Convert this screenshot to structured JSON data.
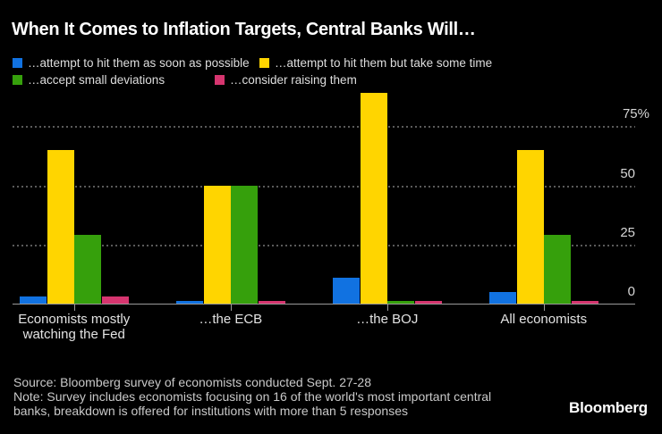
{
  "title": "When It Comes to Inflation Targets, Central Banks Will…",
  "colors": {
    "background": "#000000",
    "blue": "#1172e1",
    "yellow": "#ffd500",
    "green": "#36a00c",
    "pink": "#d6356f",
    "grid": "#5a5a5a",
    "baseline": "#9a9a9a",
    "text": "#dedede"
  },
  "legend": [
    {
      "label": "…attempt to hit them as soon as possible",
      "color": "#1172e1"
    },
    {
      "label": "…attempt to hit them but take some time",
      "color": "#ffd500"
    },
    {
      "label": "…accept small deviations",
      "color": "#36a00c"
    },
    {
      "label": "…consider raising them",
      "color": "#d6356f"
    }
  ],
  "chart_data": {
    "type": "bar",
    "categories": [
      "Economists mostly watching the Fed",
      "…the ECB",
      "…the BOJ",
      "All economists"
    ],
    "series": [
      {
        "name": "…attempt to hit them as soon as possible",
        "color": "#1172e1",
        "values": [
          3,
          1,
          11,
          5
        ]
      },
      {
        "name": "…attempt to hit them but take some time",
        "color": "#ffd500",
        "values": [
          65,
          50,
          89,
          65
        ]
      },
      {
        "name": "…accept small deviations",
        "color": "#36a00c",
        "values": [
          29,
          50,
          1,
          29
        ]
      },
      {
        "name": "…consider raising them",
        "color": "#d6356f",
        "values": [
          3,
          1,
          1,
          1
        ]
      }
    ],
    "unit": "%",
    "ylim": [
      0,
      100
    ],
    "y_ticks": [
      {
        "value": 75,
        "label": "75%"
      },
      {
        "value": 50,
        "label": "50"
      },
      {
        "value": 25,
        "label": "25"
      },
      {
        "value": 0,
        "label": "0"
      }
    ],
    "grid": "horizontal-dotted",
    "legend_position": "top"
  },
  "footer": {
    "source": "Source: Bloomberg survey of economists conducted Sept. 27-28",
    "note": "Note: Survey includes economists focusing on 16 of the world's most important central banks, breakdown is offered for institutions with more than 5 responses",
    "logo": "Bloomberg"
  }
}
